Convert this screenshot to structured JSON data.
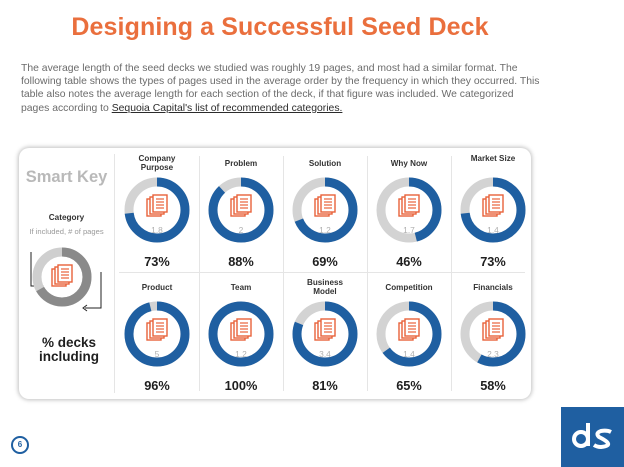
{
  "title": "Designing a Successful Seed Deck",
  "intro": {
    "text": "The average length of the seed decks we studied was roughly 19 pages, and most had a similar format. The following table shows the types of pages used in the average order by the frequency in which they occurred. This table also notes the average length for each section of the deck, if that figure was included. We categorized pages according to ",
    "link": "Sequoia Capital's list of recommended categories."
  },
  "key": {
    "title": "Smart Key",
    "category_label": "Category",
    "if_included": "If included, # of pages",
    "pct_label": "% decks including"
  },
  "colors": {
    "title": "#ea6f3d",
    "donut_fill": "#1f5fa1",
    "donut_track": "#d3d3d3",
    "doc_icon": "#e8623a",
    "logo_bg": "#1f5fa1"
  },
  "categories": [
    {
      "name": "Company Purpose",
      "pages": "1.8",
      "pct_label": "73%",
      "pct": 73
    },
    {
      "name": "Problem",
      "pages": "2",
      "pct_label": "88%",
      "pct": 88
    },
    {
      "name": "Solution",
      "pages": "1.2",
      "pct_label": "69%",
      "pct": 69
    },
    {
      "name": "Why Now",
      "pages": "1.7",
      "pct_label": "46%",
      "pct": 46
    },
    {
      "name": "Market Size",
      "pages": "1.4",
      "pct_label": "73%",
      "pct": 73
    },
    {
      "name": "Product",
      "pages": "5",
      "pct_label": "96%",
      "pct": 96
    },
    {
      "name": "Team",
      "pages": "1.2",
      "pct_label": "100%",
      "pct": 100
    },
    {
      "name": "Business Model",
      "pages": "3.4",
      "pct_label": "81%",
      "pct": 81
    },
    {
      "name": "Competition",
      "pages": "1.4",
      "pct_label": "65%",
      "pct": 65
    },
    {
      "name": "Financials",
      "pages": "2.3",
      "pct_label": "58%",
      "pct": 58
    }
  ],
  "logo_icon": "ds-logo-icon",
  "page_number": "6"
}
